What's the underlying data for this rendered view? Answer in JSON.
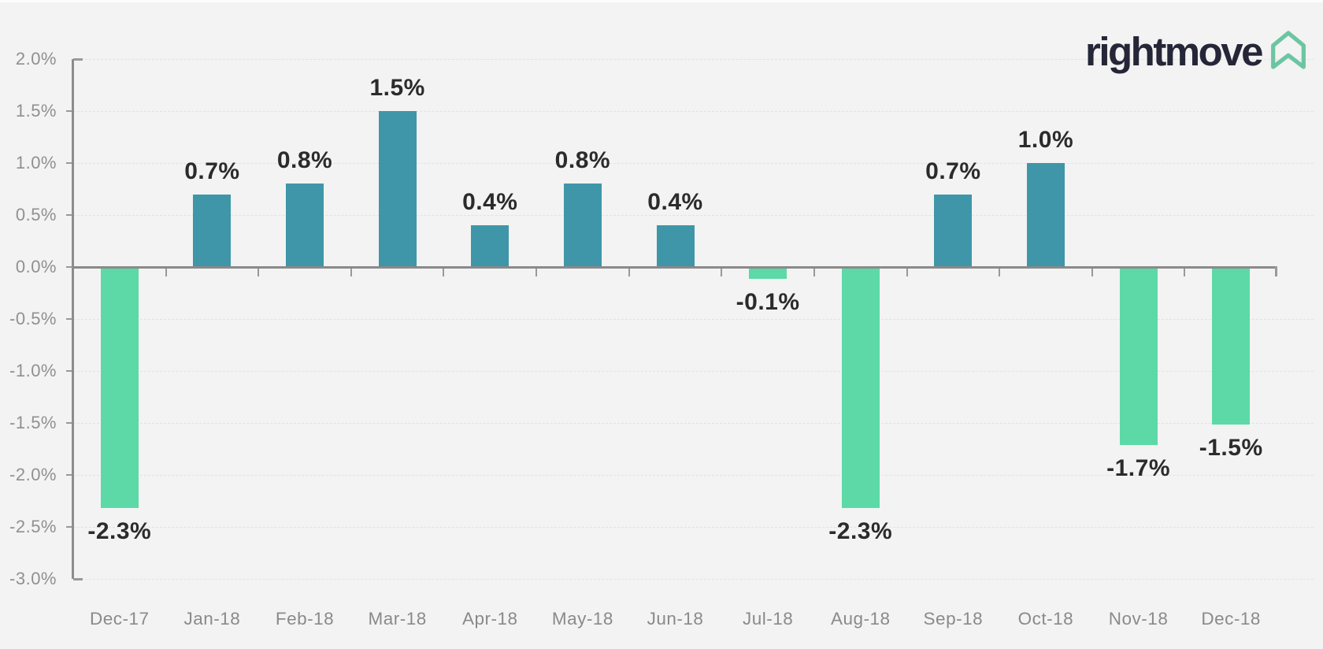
{
  "logo": {
    "brand": "rightmove",
    "icon": "rightmove-house-icon",
    "text_color": "#252638",
    "icon_color": "#6cc5a2"
  },
  "chart_data": {
    "type": "bar",
    "categories": [
      "Dec-17",
      "Jan-18",
      "Feb-18",
      "Mar-18",
      "Apr-18",
      "May-18",
      "Jun-18",
      "Jul-18",
      "Aug-18",
      "Sep-18",
      "Oct-18",
      "Nov-18",
      "Dec-18"
    ],
    "values": [
      -2.3,
      0.7,
      0.8,
      1.5,
      0.4,
      0.8,
      0.4,
      -0.1,
      -2.3,
      0.7,
      1.0,
      -1.7,
      -1.5
    ],
    "data_labels": [
      "-2.3%",
      "0.7%",
      "0.8%",
      "1.5%",
      "0.4%",
      "0.8%",
      "0.4%",
      "-0.1%",
      "-2.3%",
      "0.7%",
      "1.0%",
      "-1.7%",
      "-1.5%"
    ],
    "series_unit": "%",
    "positive_color": "#3f96a8",
    "negative_color": "#5cd9a6",
    "ylim": [
      -3.0,
      2.0
    ],
    "ytick_step": 0.5,
    "ytick_labels": [
      "2.0%",
      "1.5%",
      "1.0%",
      "0.5%",
      "0.0%",
      "-0.5%",
      "-1.0%",
      "-1.5%",
      "-2.0%",
      "-2.5%",
      "-3.0%"
    ],
    "ytick_values": [
      2.0,
      1.5,
      1.0,
      0.5,
      0.0,
      -0.5,
      -1.0,
      -1.5,
      -2.0,
      -2.5,
      -3.0
    ],
    "xlabel": "",
    "ylabel": "",
    "grid": "horizontal-dashed",
    "legend": "none"
  },
  "colors": {
    "background": "#f2f3f2",
    "axis": "#8a8a8a",
    "gridline": "#e2e2e2",
    "tick_label": "#909090",
    "value_label": "#2b2b2b"
  }
}
